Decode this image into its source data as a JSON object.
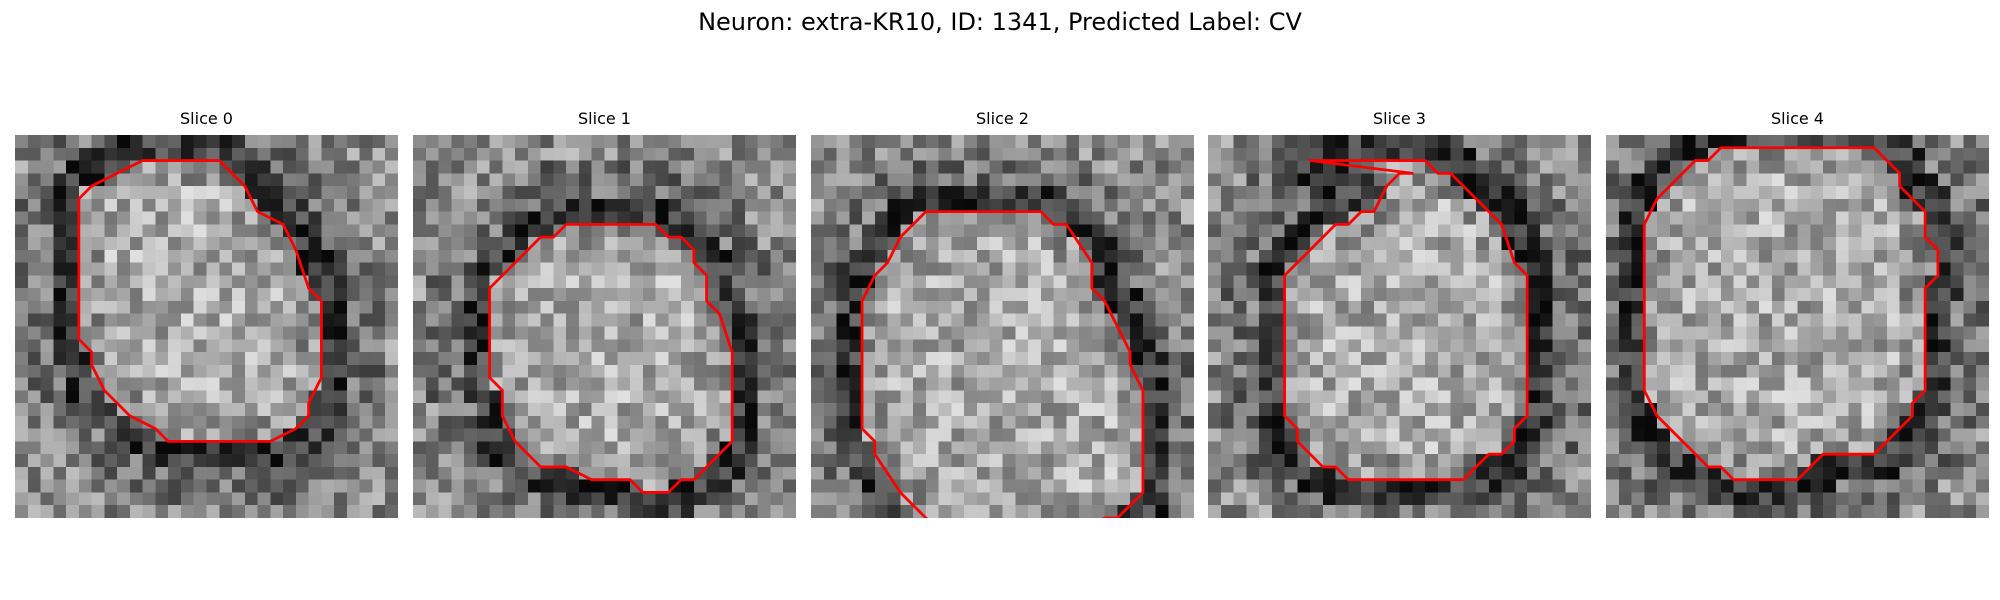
{
  "figure": {
    "title": "Neuron: extra-KR10, ID: 1341, Predicted Label: CV"
  },
  "colors": {
    "contour": "#ff0000",
    "background": "#ffffff"
  },
  "panels": [
    {
      "title": "Slice 0",
      "contour": [
        [
          10,
          2
        ],
        [
          16,
          2
        ],
        [
          18,
          4
        ],
        [
          19,
          6
        ],
        [
          21,
          7
        ],
        [
          22,
          9
        ],
        [
          23,
          12
        ],
        [
          24,
          13
        ],
        [
          24,
          19
        ],
        [
          23,
          21
        ],
        [
          23,
          22
        ],
        [
          22,
          23
        ],
        [
          20,
          24
        ],
        [
          18,
          24
        ],
        [
          12,
          24
        ],
        [
          11,
          23
        ],
        [
          9,
          22
        ],
        [
          8,
          21
        ],
        [
          7,
          20
        ],
        [
          6,
          18
        ],
        [
          6,
          17
        ],
        [
          5,
          16
        ],
        [
          5,
          15
        ],
        [
          5,
          5
        ],
        [
          6,
          4
        ],
        [
          8,
          3
        ]
      ]
    },
    {
      "title": "Slice 1",
      "contour": [
        [
          12,
          7
        ],
        [
          19,
          7
        ],
        [
          20,
          8
        ],
        [
          21,
          8
        ],
        [
          22,
          9
        ],
        [
          22,
          10
        ],
        [
          23,
          11
        ],
        [
          23,
          13
        ],
        [
          24,
          14
        ],
        [
          25,
          17
        ],
        [
          25,
          24
        ],
        [
          24,
          25
        ],
        [
          23,
          26
        ],
        [
          22,
          27
        ],
        [
          21,
          27
        ],
        [
          20,
          28
        ],
        [
          18,
          28
        ],
        [
          17,
          27
        ],
        [
          14,
          27
        ],
        [
          12,
          26
        ],
        [
          10,
          26
        ],
        [
          9,
          25
        ],
        [
          8,
          24
        ],
        [
          7,
          22
        ],
        [
          7,
          20
        ],
        [
          6,
          19
        ],
        [
          6,
          12
        ],
        [
          7,
          11
        ],
        [
          8,
          10
        ],
        [
          9,
          9
        ],
        [
          10,
          8
        ],
        [
          11,
          8
        ]
      ]
    },
    {
      "title": "Slice 2",
      "contour": [
        [
          9,
          6
        ],
        [
          18,
          6
        ],
        [
          19,
          7
        ],
        [
          20,
          7
        ],
        [
          22,
          10
        ],
        [
          22,
          12
        ],
        [
          23,
          13
        ],
        [
          24,
          15
        ],
        [
          25,
          17
        ],
        [
          25,
          18
        ],
        [
          26,
          20
        ],
        [
          26,
          28
        ],
        [
          25,
          29
        ],
        [
          24,
          30
        ],
        [
          23,
          30
        ],
        [
          21,
          31
        ],
        [
          10,
          31
        ],
        [
          9,
          30
        ],
        [
          8,
          29
        ],
        [
          7,
          28
        ],
        [
          5,
          25
        ],
        [
          5,
          24
        ],
        [
          4,
          23
        ],
        [
          4,
          13
        ],
        [
          5,
          11
        ],
        [
          6,
          10
        ],
        [
          7,
          8
        ],
        [
          8,
          7
        ]
      ]
    },
    {
      "title": "Slice 3",
      "contour": [
        [
          8,
          2
        ],
        [
          17,
          2
        ],
        [
          18,
          3
        ],
        [
          19,
          3
        ],
        [
          20,
          4
        ],
        [
          21,
          5
        ],
        [
          22,
          6
        ],
        [
          23,
          7
        ],
        [
          24,
          10
        ],
        [
          25,
          11
        ],
        [
          25,
          22
        ],
        [
          24,
          23
        ],
        [
          24,
          24
        ],
        [
          23,
          25
        ],
        [
          22,
          25
        ],
        [
          21,
          26
        ],
        [
          20,
          27
        ],
        [
          11,
          27
        ],
        [
          10,
          26
        ],
        [
          9,
          26
        ],
        [
          8,
          25
        ],
        [
          7,
          24
        ],
        [
          7,
          23
        ],
        [
          6,
          22
        ],
        [
          6,
          11
        ],
        [
          7,
          10
        ],
        [
          8,
          9
        ],
        [
          9,
          8
        ],
        [
          10,
          7
        ],
        [
          11,
          7
        ],
        [
          12,
          6
        ],
        [
          13,
          6
        ],
        [
          14,
          4
        ],
        [
          15,
          3
        ],
        [
          16,
          3
        ]
      ]
    },
    {
      "title": "Slice 4",
      "contour": [
        [
          9,
          1
        ],
        [
          21,
          1
        ],
        [
          22,
          2
        ],
        [
          23,
          3
        ],
        [
          23,
          4
        ],
        [
          24,
          5
        ],
        [
          25,
          6
        ],
        [
          25,
          8
        ],
        [
          26,
          9
        ],
        [
          26,
          10
        ],
        [
          26,
          11
        ],
        [
          25,
          12
        ],
        [
          25,
          20
        ],
        [
          24,
          21
        ],
        [
          24,
          22
        ],
        [
          23,
          23
        ],
        [
          22,
          24
        ],
        [
          21,
          25
        ],
        [
          17,
          25
        ],
        [
          16,
          26
        ],
        [
          15,
          27
        ],
        [
          10,
          27
        ],
        [
          9,
          26
        ],
        [
          8,
          26
        ],
        [
          7,
          25
        ],
        [
          6,
          24
        ],
        [
          5,
          23
        ],
        [
          4,
          22
        ],
        [
          3,
          20
        ],
        [
          3,
          7
        ],
        [
          4,
          5
        ],
        [
          5,
          4
        ],
        [
          6,
          3
        ],
        [
          7,
          2
        ],
        [
          8,
          2
        ]
      ]
    }
  ]
}
